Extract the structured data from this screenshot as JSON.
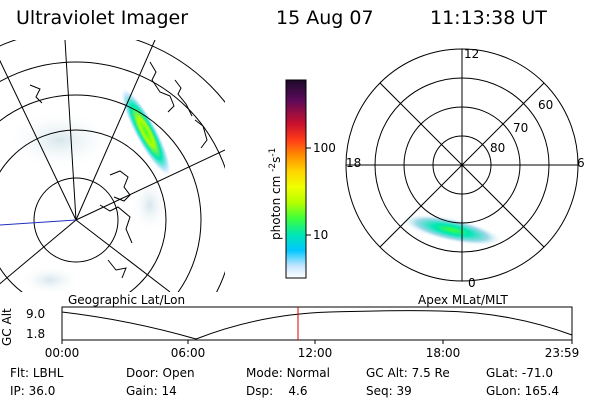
{
  "header": {
    "instrument": "Ultraviolet Imager",
    "date": "15 Aug 07",
    "time": "11:13:38 UT"
  },
  "geo_panel": {
    "label": "Geographic Lat/Lon"
  },
  "mag_panel": {
    "label": "Apex MLat/MLT",
    "mlt_labels": {
      "top": "12",
      "bottom": "0",
      "left": "18",
      "right": "6"
    },
    "mlat_labels": [
      "60",
      "70",
      "80"
    ]
  },
  "colorbar": {
    "unit_label": "photon cm",
    "unit_exp1": "-2",
    "unit_s": "s",
    "unit_exp2": "-1",
    "tick_labels": [
      "100",
      "10"
    ],
    "colors": [
      "#1c0a2a",
      "#7a0a6a",
      "#c8102e",
      "#ff3a1a",
      "#ff8c00",
      "#ffd400",
      "#f0ff00",
      "#b4ff00",
      "#3cff3c",
      "#00e6b4",
      "#00c8ff",
      "#c8e6ff",
      "#ffffff"
    ]
  },
  "altitude_plot": {
    "ylabel": "GC Alt",
    "y_ticks": [
      "9.0",
      "1.8"
    ],
    "x_ticks": [
      "00:00",
      "06:00",
      "12:00",
      "18:00",
      "23:59"
    ],
    "current_time_color": "#e00000"
  },
  "status": {
    "row1": [
      {
        "key": "Flt:",
        "value": "LBHL"
      },
      {
        "key": "Door:",
        "value": "Open"
      },
      {
        "key": "Mode:",
        "value": "Normal"
      },
      {
        "key": "GC Alt:",
        "value": "7.5 Re"
      },
      {
        "key": "GLat:",
        "value": "-71.0"
      }
    ],
    "row2": [
      {
        "key": "IP:",
        "value": "36.0"
      },
      {
        "key": "Gain:",
        "value": "14"
      },
      {
        "key": "Dsp:",
        "value": "4.6"
      },
      {
        "key": "Seq:",
        "value": "39"
      },
      {
        "key": "GLon:",
        "value": "165.4"
      }
    ]
  }
}
